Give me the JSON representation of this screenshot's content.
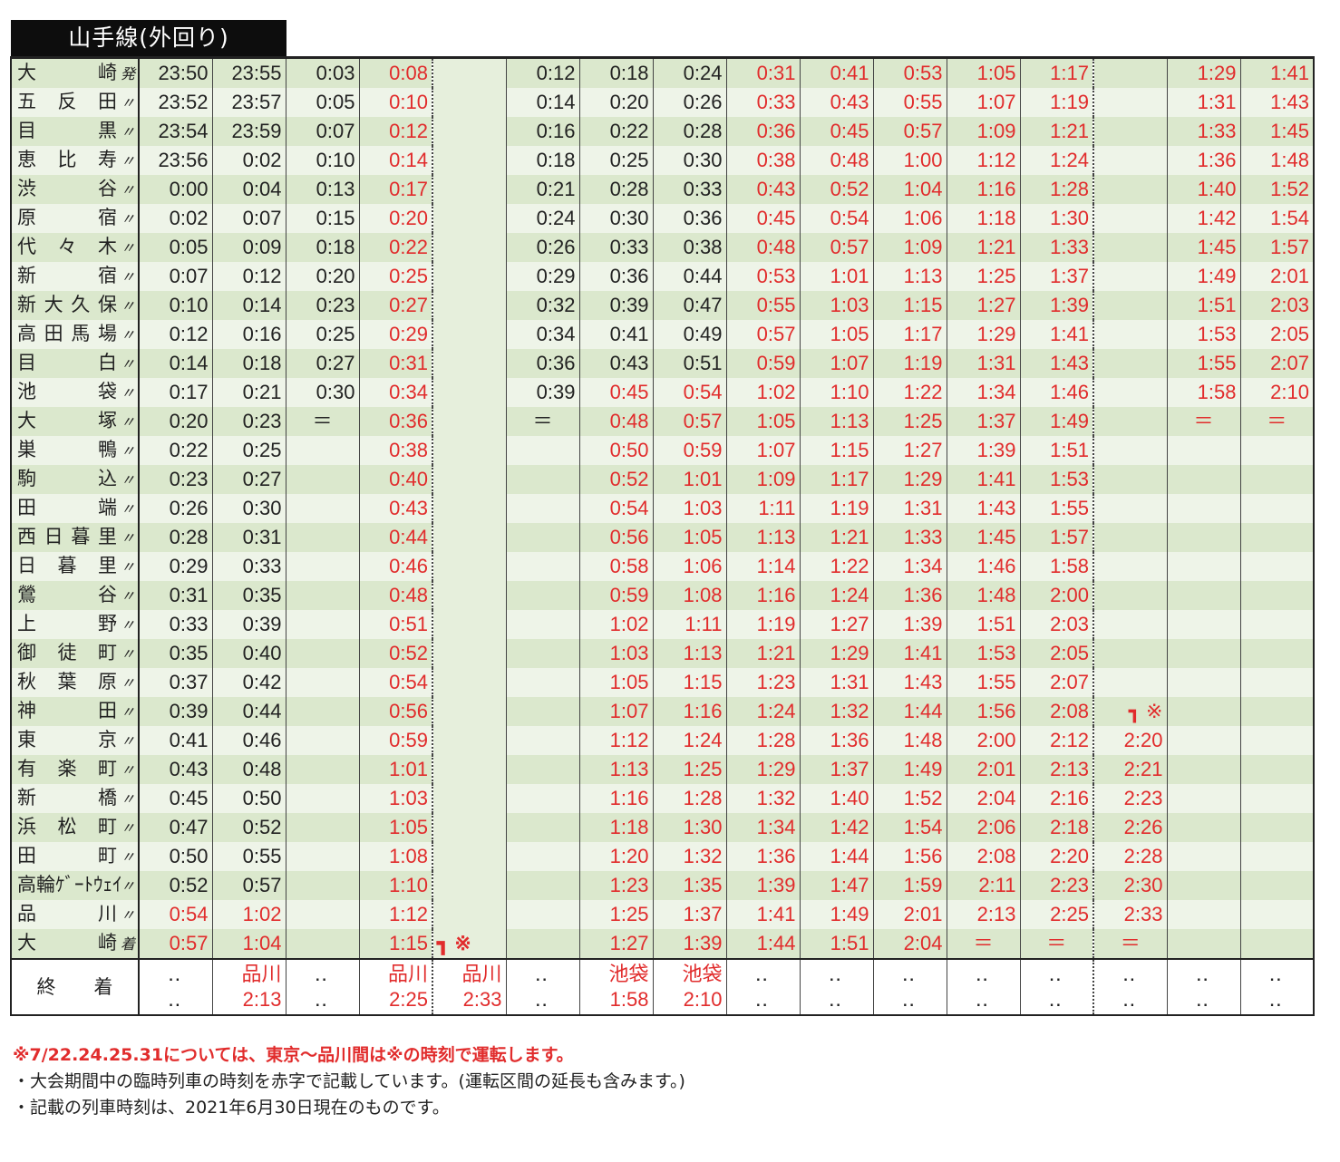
{
  "title": "山手線(外回り)",
  "stations": [
    {
      "name": "大　　崎",
      "mark": "発"
    },
    {
      "name": "五反田",
      "mark": "〃"
    },
    {
      "name": "目　　黒",
      "mark": "〃"
    },
    {
      "name": "恵比寿",
      "mark": "〃"
    },
    {
      "name": "渋　　谷",
      "mark": "〃"
    },
    {
      "name": "原　　宿",
      "mark": "〃"
    },
    {
      "name": "代々木",
      "mark": "〃"
    },
    {
      "name": "新　　宿",
      "mark": "〃"
    },
    {
      "name": "新大久保",
      "mark": "〃"
    },
    {
      "name": "高田馬場",
      "mark": "〃"
    },
    {
      "name": "目　　白",
      "mark": "〃"
    },
    {
      "name": "池　　袋",
      "mark": "〃"
    },
    {
      "name": "大　　塚",
      "mark": "〃"
    },
    {
      "name": "巣　　鴨",
      "mark": "〃"
    },
    {
      "name": "駒　　込",
      "mark": "〃"
    },
    {
      "name": "田　　端",
      "mark": "〃"
    },
    {
      "name": "西日暮里",
      "mark": "〃"
    },
    {
      "name": "日暮里",
      "mark": "〃"
    },
    {
      "name": "鶯　　谷",
      "mark": "〃"
    },
    {
      "name": "上　　野",
      "mark": "〃"
    },
    {
      "name": "御徒町",
      "mark": "〃"
    },
    {
      "name": "秋葉原",
      "mark": "〃"
    },
    {
      "name": "神　　田",
      "mark": "〃"
    },
    {
      "name": "東　　京",
      "mark": "〃"
    },
    {
      "name": "有楽町",
      "mark": "〃"
    },
    {
      "name": "新　　橋",
      "mark": "〃"
    },
    {
      "name": "浜松町",
      "mark": "〃"
    },
    {
      "name": "田　　町",
      "mark": "〃"
    },
    {
      "name": "高輪ｹﾞｰﾄｳｪｲ",
      "mark": "〃"
    },
    {
      "name": "品　　川",
      "mark": "〃"
    },
    {
      "name": "大　　崎",
      "mark": "着"
    }
  ],
  "columns": [
    {
      "times": [
        "23:50",
        "23:52",
        "23:54",
        "23:56",
        "0:00",
        "0:02",
        "0:05",
        "0:07",
        "0:10",
        "0:12",
        "0:14",
        "0:17",
        "0:20",
        "0:22",
        "0:23",
        "0:26",
        "0:28",
        "0:29",
        "0:31",
        "0:33",
        "0:35",
        "0:37",
        "0:39",
        "0:41",
        "0:43",
        "0:45",
        "0:47",
        "0:50",
        "0:52",
        "0:54",
        "0:57"
      ],
      "red_from": 29,
      "foot": [
        "‥",
        "‥"
      ],
      "foot_red": false
    },
    {
      "times": [
        "23:55",
        "23:57",
        "23:59",
        "0:02",
        "0:04",
        "0:07",
        "0:09",
        "0:12",
        "0:14",
        "0:16",
        "0:18",
        "0:21",
        "0:23",
        "0:25",
        "0:27",
        "0:30",
        "0:31",
        "0:33",
        "0:35",
        "0:39",
        "0:40",
        "0:42",
        "0:44",
        "0:46",
        "0:48",
        "0:50",
        "0:52",
        "0:55",
        "0:57",
        "1:02",
        "1:04"
      ],
      "red_from": 29,
      "foot": [
        "品川",
        "2:13"
      ],
      "foot_red": true
    },
    {
      "times": [
        "0:03",
        "0:05",
        "0:07",
        "0:10",
        "0:13",
        "0:15",
        "0:18",
        "0:20",
        "0:23",
        "0:25",
        "0:27",
        "0:30",
        "＝",
        "",
        "",
        "",
        "",
        "",
        "",
        "",
        "",
        "",
        "",
        "",
        "",
        "",
        "",
        "",
        "",
        "",
        ""
      ],
      "red_from": 99,
      "foot": [
        "‥",
        "‥"
      ],
      "foot_red": false
    },
    {
      "times": [
        "0:08",
        "0:10",
        "0:12",
        "0:14",
        "0:17",
        "0:20",
        "0:22",
        "0:25",
        "0:27",
        "0:29",
        "0:31",
        "0:34",
        "0:36",
        "0:38",
        "0:40",
        "0:43",
        "0:44",
        "0:46",
        "0:48",
        "0:51",
        "0:52",
        "0:54",
        "0:56",
        "0:59",
        "1:01",
        "1:03",
        "1:05",
        "1:08",
        "1:10",
        "1:12",
        "1:15"
      ],
      "red_from": 0,
      "foot": [
        "品川",
        "2:25"
      ],
      "foot_red": true
    },
    {
      "times": [
        "",
        "",
        "",
        "",
        "",
        "",
        "",
        "",
        "",
        "",
        "",
        "",
        "",
        "",
        "",
        "",
        "",
        "",
        "",
        "",
        "",
        "",
        "",
        "",
        "",
        "",
        "",
        "",
        "",
        "",
        ""
      ],
      "red_from": 0,
      "foot": [
        "品川",
        "2:33"
      ],
      "foot_red": true,
      "last_arrow": "┓ ※"
    },
    {
      "times": [
        "0:12",
        "0:14",
        "0:16",
        "0:18",
        "0:21",
        "0:24",
        "0:26",
        "0:29",
        "0:32",
        "0:34",
        "0:36",
        "0:39",
        "＝",
        "",
        "",
        "",
        "",
        "",
        "",
        "",
        "",
        "",
        "",
        "",
        "",
        "",
        "",
        "",
        "",
        "",
        ""
      ],
      "red_from": 99,
      "foot": [
        "‥",
        "‥"
      ],
      "foot_red": false
    },
    {
      "times": [
        "0:18",
        "0:20",
        "0:22",
        "0:25",
        "0:28",
        "0:30",
        "0:33",
        "0:36",
        "0:39",
        "0:41",
        "0:43",
        "0:45",
        "0:48",
        "0:50",
        "0:52",
        "0:54",
        "0:56",
        "0:58",
        "0:59",
        "1:02",
        "1:03",
        "1:05",
        "1:07",
        "1:12",
        "1:13",
        "1:16",
        "1:18",
        "1:20",
        "1:23",
        "1:25",
        "1:27"
      ],
      "red_from": 11,
      "foot": [
        "池袋",
        "1:58"
      ],
      "foot_red": true
    },
    {
      "times": [
        "0:24",
        "0:26",
        "0:28",
        "0:30",
        "0:33",
        "0:36",
        "0:38",
        "0:44",
        "0:47",
        "0:49",
        "0:51",
        "0:54",
        "0:57",
        "0:59",
        "1:01",
        "1:03",
        "1:05",
        "1:06",
        "1:08",
        "1:11",
        "1:13",
        "1:15",
        "1:16",
        "1:24",
        "1:25",
        "1:28",
        "1:30",
        "1:32",
        "1:35",
        "1:37",
        "1:39"
      ],
      "red_from": 11,
      "foot": [
        "池袋",
        "2:10"
      ],
      "foot_red": true
    },
    {
      "times": [
        "0:31",
        "0:33",
        "0:36",
        "0:38",
        "0:43",
        "0:45",
        "0:48",
        "0:53",
        "0:55",
        "0:57",
        "0:59",
        "1:02",
        "1:05",
        "1:07",
        "1:09",
        "1:11",
        "1:13",
        "1:14",
        "1:16",
        "1:19",
        "1:21",
        "1:23",
        "1:24",
        "1:28",
        "1:29",
        "1:32",
        "1:34",
        "1:36",
        "1:39",
        "1:41",
        "1:44"
      ],
      "red_from": 0,
      "foot": [
        "‥",
        "‥"
      ],
      "foot_red": false
    },
    {
      "times": [
        "0:41",
        "0:43",
        "0:45",
        "0:48",
        "0:52",
        "0:54",
        "0:57",
        "1:01",
        "1:03",
        "1:05",
        "1:07",
        "1:10",
        "1:13",
        "1:15",
        "1:17",
        "1:19",
        "1:21",
        "1:22",
        "1:24",
        "1:27",
        "1:29",
        "1:31",
        "1:32",
        "1:36",
        "1:37",
        "1:40",
        "1:42",
        "1:44",
        "1:47",
        "1:49",
        "1:51"
      ],
      "red_from": 0,
      "foot": [
        "‥",
        "‥"
      ],
      "foot_red": false
    },
    {
      "times": [
        "0:53",
        "0:55",
        "0:57",
        "1:00",
        "1:04",
        "1:06",
        "1:09",
        "1:13",
        "1:15",
        "1:17",
        "1:19",
        "1:22",
        "1:25",
        "1:27",
        "1:29",
        "1:31",
        "1:33",
        "1:34",
        "1:36",
        "1:39",
        "1:41",
        "1:43",
        "1:44",
        "1:48",
        "1:49",
        "1:52",
        "1:54",
        "1:56",
        "1:59",
        "2:01",
        "2:04"
      ],
      "red_from": 0,
      "foot": [
        "‥",
        "‥"
      ],
      "foot_red": false
    },
    {
      "times": [
        "1:05",
        "1:07",
        "1:09",
        "1:12",
        "1:16",
        "1:18",
        "1:21",
        "1:25",
        "1:27",
        "1:29",
        "1:31",
        "1:34",
        "1:37",
        "1:39",
        "1:41",
        "1:43",
        "1:45",
        "1:46",
        "1:48",
        "1:51",
        "1:53",
        "1:55",
        "1:56",
        "2:00",
        "2:01",
        "2:04",
        "2:06",
        "2:08",
        "2:11",
        "2:13",
        "＝"
      ],
      "red_from": 0,
      "foot": [
        "‥",
        "‥"
      ],
      "foot_red": false
    },
    {
      "times": [
        "1:17",
        "1:19",
        "1:21",
        "1:24",
        "1:28",
        "1:30",
        "1:33",
        "1:37",
        "1:39",
        "1:41",
        "1:43",
        "1:46",
        "1:49",
        "1:51",
        "1:53",
        "1:55",
        "1:57",
        "1:58",
        "2:00",
        "2:03",
        "2:05",
        "2:07",
        "2:08",
        "2:12",
        "2:13",
        "2:16",
        "2:18",
        "2:20",
        "2:23",
        "2:25",
        "＝"
      ],
      "red_from": 0,
      "foot": [
        "‥",
        "‥"
      ],
      "foot_red": false
    },
    {
      "times": [
        "",
        "",
        "",
        "",
        "",
        "",
        "",
        "",
        "",
        "",
        "",
        "",
        "",
        "",
        "",
        "",
        "",
        "",
        "",
        "",
        "",
        "",
        "┓ ※",
        "2:20",
        "2:21",
        "2:23",
        "2:26",
        "2:28",
        "2:30",
        "2:33",
        "＝"
      ],
      "red_from": 0,
      "foot": [
        "‥",
        "‥"
      ],
      "foot_red": false
    },
    {
      "times": [
        "1:29",
        "1:31",
        "1:33",
        "1:36",
        "1:40",
        "1:42",
        "1:45",
        "1:49",
        "1:51",
        "1:53",
        "1:55",
        "1:58",
        "＝",
        "",
        "",
        "",
        "",
        "",
        "",
        "",
        "",
        "",
        "",
        "",
        "",
        "",
        "",
        "",
        "",
        "",
        ""
      ],
      "red_from": 0,
      "foot": [
        "‥",
        "‥"
      ],
      "foot_red": false
    },
    {
      "times": [
        "1:41",
        "1:43",
        "1:45",
        "1:48",
        "1:52",
        "1:54",
        "1:57",
        "2:01",
        "2:03",
        "2:05",
        "2:07",
        "2:10",
        "＝",
        "",
        "",
        "",
        "",
        "",
        "",
        "",
        "",
        "",
        "",
        "",
        "",
        "",
        "",
        "",
        "",
        "",
        ""
      ],
      "red_from": 0,
      "foot": [
        "‥",
        "‥"
      ],
      "foot_red": false
    }
  ],
  "footer_label": "終　　着",
  "notes": [
    "※7/22.24.25.31については、東京～品川間は※の時刻で運転します。",
    "・大会期間中の臨時列車の時刻を赤字で記載しています。(運転区間の延長も含みます。)",
    "・記載の列車時刻は、2021年6月30日現在のものです。"
  ],
  "colors": {
    "red": "#e12c2c",
    "band_dark": "#dbe8cd",
    "band_light": "#eef4e8",
    "title_bg": "#0d0d0d"
  }
}
